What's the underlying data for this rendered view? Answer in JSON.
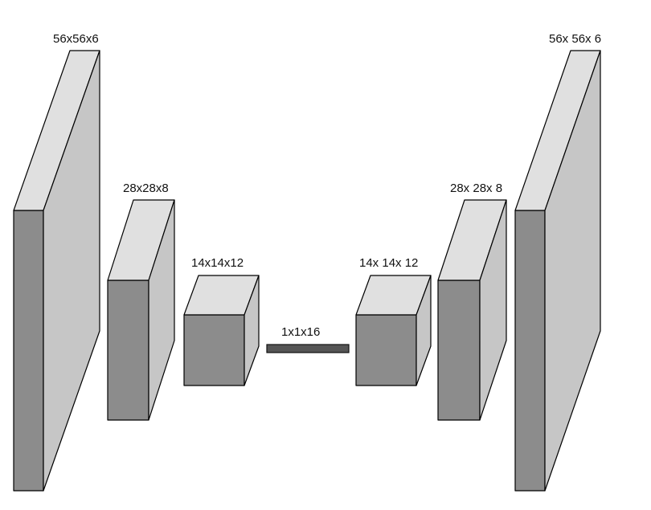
{
  "diagram": {
    "encoder": [
      {
        "label": "56x56x6"
      },
      {
        "label": "28x28x8"
      },
      {
        "label": "14x14x12"
      }
    ],
    "bottleneck": {
      "label": "1x1x16"
    },
    "decoder": [
      {
        "label": "14x 14x 12"
      },
      {
        "label": "28x 28x 8"
      },
      {
        "label": "56x 56x 6"
      }
    ],
    "colors": {
      "front_face": "#8c8c8c",
      "top_face": "#e0e0e0",
      "side_face": "#c6c6c6",
      "outline": "#000000",
      "bottleneck": "#555555"
    }
  }
}
